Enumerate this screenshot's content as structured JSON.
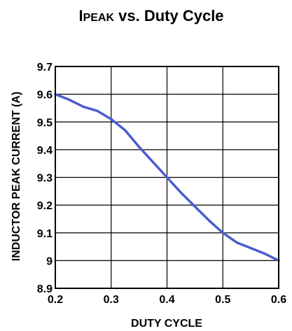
{
  "chart_data": {
    "type": "line",
    "title": {
      "main_lead": "I",
      "main_small": "PEAK",
      "main_rest": " vs. Duty Cycle"
    },
    "xlabel": "DUTY CYCLE",
    "ylabel": "INDUCTOR PEAK CURRENT (A)",
    "xlim": [
      0.2,
      0.6
    ],
    "ylim": [
      8.9,
      9.7
    ],
    "x_ticks": [
      0.2,
      0.3,
      0.4,
      0.5,
      0.6
    ],
    "x_tick_labels": [
      "0.2",
      "0.3",
      "0.4",
      "0.5",
      "0.6"
    ],
    "y_ticks": [
      8.9,
      9.0,
      9.1,
      9.2,
      9.3,
      9.4,
      9.5,
      9.6,
      9.7
    ],
    "y_tick_labels": [
      "8.9",
      "9",
      "9.1",
      "9.2",
      "9.3",
      "9.4",
      "9.5",
      "9.6",
      "9.7"
    ],
    "grid": true,
    "legend": "none",
    "series": [
      {
        "color": "#4b5ccf",
        "x": [
          0.2,
          0.225,
          0.25,
          0.275,
          0.3,
          0.325,
          0.35,
          0.375,
          0.4,
          0.425,
          0.45,
          0.475,
          0.5,
          0.525,
          0.55,
          0.575,
          0.6
        ],
        "y": [
          9.6,
          9.58,
          9.555,
          9.54,
          9.51,
          9.47,
          9.41,
          9.355,
          9.3,
          9.245,
          9.195,
          9.145,
          9.1,
          9.065,
          9.045,
          9.025,
          9.0
        ]
      }
    ]
  }
}
